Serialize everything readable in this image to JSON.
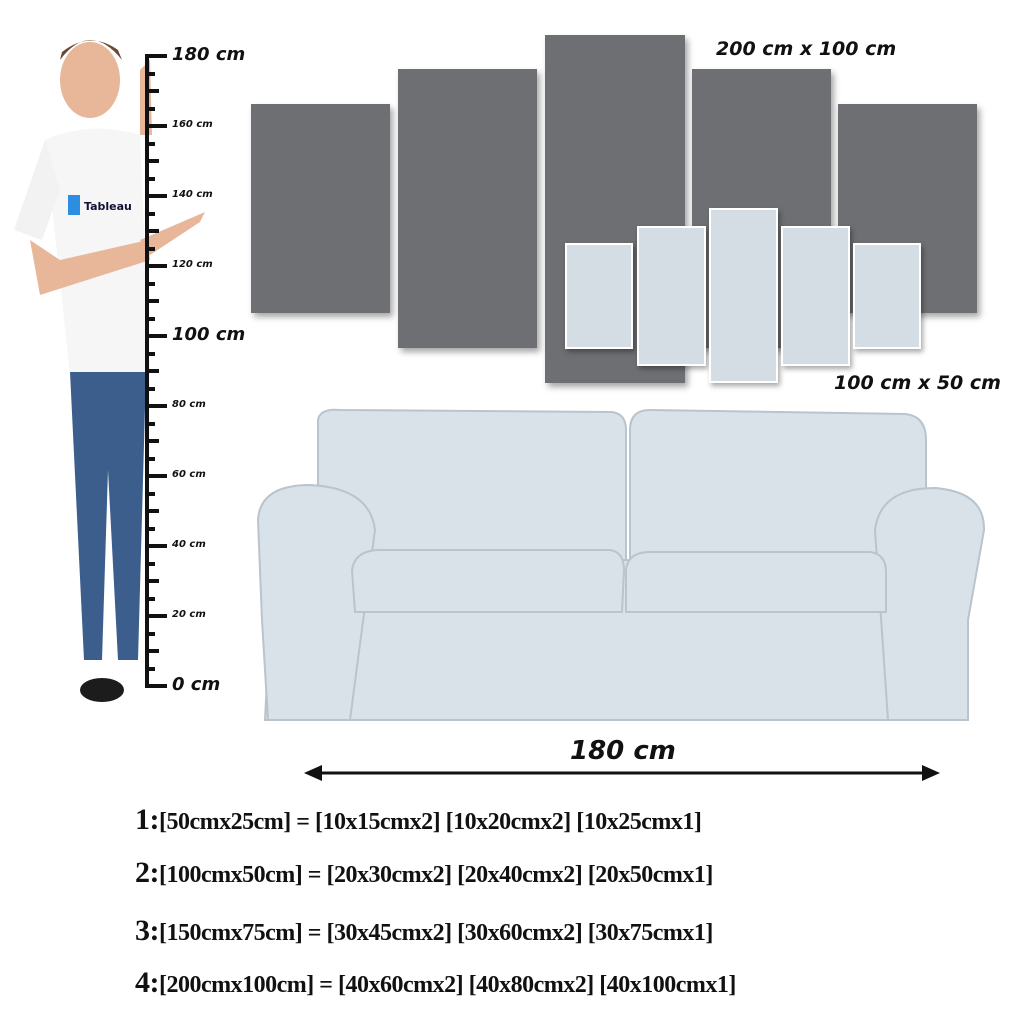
{
  "ruler": {
    "unit": "cm",
    "labels": [
      {
        "value": 0,
        "text": "0 cm",
        "major": true
      },
      {
        "value": 20,
        "text": "20 cm",
        "major": false
      },
      {
        "value": 40,
        "text": "40 cm",
        "major": false
      },
      {
        "value": 60,
        "text": "60 cm",
        "major": false
      },
      {
        "value": 80,
        "text": "80 cm",
        "major": false
      },
      {
        "value": 100,
        "text": "100 cm",
        "major": true
      },
      {
        "value": 120,
        "text": "120 cm",
        "major": false
      },
      {
        "value": 140,
        "text": "140 cm",
        "major": false
      },
      {
        "value": 160,
        "text": "160 cm",
        "major": false
      },
      {
        "value": 180,
        "text": "180 cm",
        "major": true
      }
    ]
  },
  "shirt_logo": "Tableau",
  "large_set_label": "200 cm x 100 cm",
  "small_set_label": "100 cm x 50 cm",
  "sofa_width_label": "180 cm",
  "colors": {
    "large_panel": "#6d6f73",
    "small_panel": "#d5dde4",
    "sofa": "#d9e2e8"
  },
  "sizes": [
    {
      "num": "1:",
      "text": "[50cmx25cm] = [10x15cmx2] [10x20cmx2] [10x25cmx1]"
    },
    {
      "num": "2:",
      "text": "[100cmx50cm] = [20x30cmx2] [20x40cmx2] [20x50cmx1]"
    },
    {
      "num": "3:",
      "text": "[150cmx75cm] = [30x45cmx2] [30x60cmx2] [30x75cmx1]"
    },
    {
      "num": "4:",
      "text": "[200cmx100cm] = [40x60cmx2] [40x80cmx2] [40x100cmx1]"
    }
  ]
}
